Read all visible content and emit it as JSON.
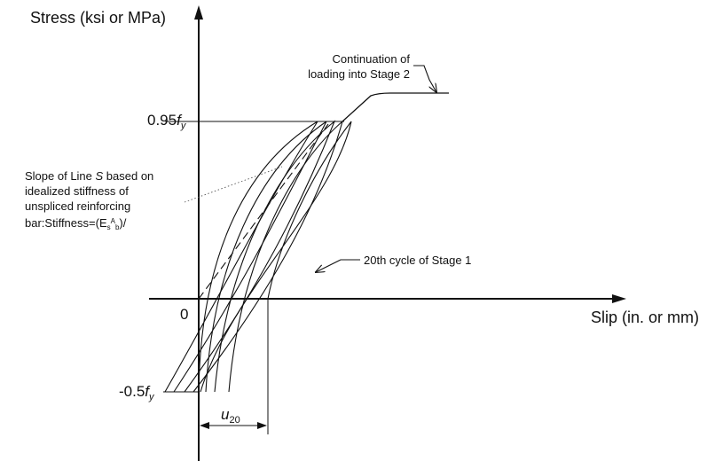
{
  "axes": {
    "y_title": "Stress (ksi or MPa)",
    "x_title": "Slip (in. or mm)",
    "origin_label": "0"
  },
  "ticks": {
    "upper_coef": "0.95",
    "upper_var": "f",
    "upper_sub": "y",
    "lower_coef": "-0.5",
    "lower_var": "f",
    "lower_sub": "y"
  },
  "annotations": {
    "continuation_line1": "Continuation of",
    "continuation_line2": "loading into Stage 2",
    "slope_line1_pre": "Slope of Line ",
    "slope_line1_var": "S",
    "slope_line1_post": " based on",
    "slope_line2": "idealized stiffness of",
    "slope_line3": "unspliced reinforcing",
    "slope_line4_pre": "bar:Stiffness=(E",
    "slope_line4_sub_s": "s",
    "slope_line4_sup_a": "A",
    "slope_line4_sub_b": "b",
    "slope_line4_post": ")/",
    "cycle20": "20th cycle of Stage 1",
    "u20_var": "u",
    "u20_sub": "20"
  }
}
